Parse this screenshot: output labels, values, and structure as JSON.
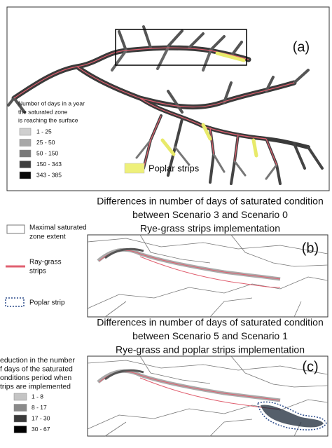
{
  "panel_a": {
    "label": "(a)",
    "legend_title": [
      "Number of days in a year",
      "the saturated zone",
      "is reaching the surface"
    ],
    "legend_items": [
      {
        "label": "1 - 25",
        "color": "#cfcfcf"
      },
      {
        "label": "25 - 50",
        "color": "#a8a8a8"
      },
      {
        "label": "50 - 150",
        "color": "#7a7a7a"
      },
      {
        "label": "150 - 343",
        "color": "#3e3e3e"
      },
      {
        "label": "343 - 385",
        "color": "#0a0a0a"
      }
    ],
    "poplar": {
      "label": "Poplar strips",
      "color": "#eef07a"
    }
  },
  "panel_b": {
    "title": [
      "Differences in number of days of saturated condition",
      "between Scenario 3 and Scenario 0",
      "Rye-grass strips implementation"
    ],
    "label": "(b)",
    "legend": {
      "zone": [
        "Maximal saturated",
        "zone extent"
      ],
      "ryegrass": [
        "Ray-grass",
        "strips"
      ],
      "poplar": "Poplar strip"
    }
  },
  "panel_c": {
    "title": [
      "Differences in number of days of saturated condition",
      "between Scenario 5 and Scenario 1",
      "Rye-grass and poplar strips implementation"
    ],
    "label": "(c)",
    "legend_title": [
      "eduction in the number",
      "f days of the saturated",
      "onditions period when",
      "trips are implemented"
    ],
    "legend_items": [
      {
        "label": "1 - 8",
        "color": "#c4c4c4"
      },
      {
        "label": "8 - 17",
        "color": "#8a8a8a"
      },
      {
        "label": "17 - 30",
        "color": "#3a3a3a"
      },
      {
        "label": "30 - 67",
        "color": "#000000"
      }
    ]
  }
}
